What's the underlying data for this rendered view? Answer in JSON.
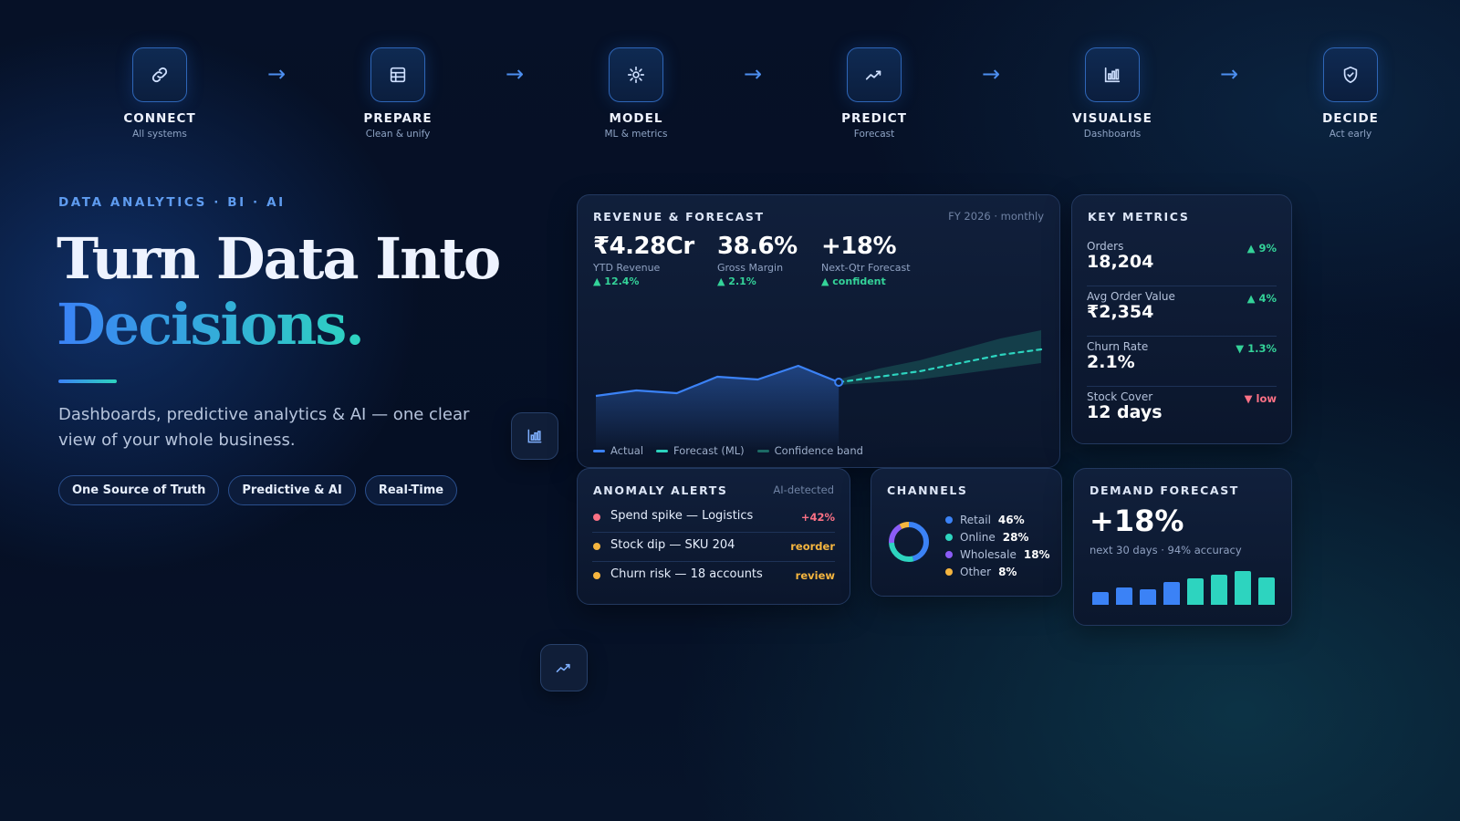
{
  "pipeline": [
    {
      "label": "CONNECT",
      "sub": "All systems",
      "icon": "link-icon"
    },
    {
      "label": "PREPARE",
      "sub": "Clean & unify",
      "icon": "table-icon"
    },
    {
      "label": "MODEL",
      "sub": "ML & metrics",
      "icon": "gear-icon"
    },
    {
      "label": "PREDICT",
      "sub": "Forecast",
      "icon": "trend-icon"
    },
    {
      "label": "VISUALISE",
      "sub": "Dashboards",
      "icon": "bar-chart-icon"
    },
    {
      "label": "DECIDE",
      "sub": "Act early",
      "icon": "shield-check-icon"
    }
  ],
  "hero": {
    "eyebrow": "DATA ANALYTICS · BI · AI",
    "headline_1": "Turn Data Into",
    "headline_2": "Decisions.",
    "description": "Dashboards, predictive analytics & AI — one clear view of your whole business.",
    "pills": [
      "One Source of Truth",
      "Predictive & AI",
      "Real-Time"
    ]
  },
  "revenue": {
    "title": "REVENUE & FORECAST",
    "meta": "FY 2026 · monthly",
    "stats": [
      {
        "value": "₹4.28Cr",
        "label": "YTD Revenue",
        "delta": "▲ 12.4%"
      },
      {
        "value": "38.6%",
        "label": "Gross Margin",
        "delta": "▲ 2.1%"
      },
      {
        "value": "+18%",
        "label": "Next-Qtr Forecast",
        "delta": "▲ confident"
      }
    ],
    "legend": [
      "Actual",
      "Forecast (ML)",
      "Confidence band"
    ]
  },
  "chart_data": {
    "type": "line",
    "title": "",
    "x": [
      1,
      2,
      3,
      4,
      5,
      6,
      7,
      8,
      9,
      10,
      11,
      12
    ],
    "series": [
      {
        "name": "Actual",
        "values": [
          20,
          22,
          21,
          27,
          26,
          31,
          25,
          null,
          null,
          null,
          null,
          null
        ]
      },
      {
        "name": "Forecast (ML)",
        "values": [
          null,
          null,
          null,
          null,
          null,
          null,
          25,
          27,
          29,
          32,
          35,
          37
        ]
      },
      {
        "name": "Confidence band",
        "lower": [
          null,
          null,
          null,
          null,
          null,
          null,
          24,
          25,
          26,
          28,
          30,
          32
        ],
        "upper": [
          null,
          null,
          null,
          null,
          null,
          null,
          26,
          30,
          33,
          37,
          41,
          44
        ]
      }
    ],
    "ylim": [
      0,
      50
    ],
    "grid": false,
    "legend": "bottom-left",
    "colors": {
      "actual": "#3b82f6",
      "forecast": "#2dd4bf",
      "band": "#1d6b66"
    }
  },
  "metrics": {
    "title": "KEY METRICS",
    "items": [
      {
        "label": "Orders",
        "value": "18,204",
        "delta": "▲ 9%",
        "dir": "up"
      },
      {
        "label": "Avg Order Value",
        "value": "₹2,354",
        "delta": "▲ 4%",
        "dir": "up"
      },
      {
        "label": "Churn Rate",
        "value": "2.1%",
        "delta": "▼ 1.3%",
        "dir": "down-green"
      },
      {
        "label": "Stock Cover",
        "value": "12 days",
        "delta": "▼ low",
        "dir": "down"
      }
    ]
  },
  "anomaly": {
    "title": "ANOMALY ALERTS",
    "meta": "AI-detected",
    "items": [
      {
        "text": "Spend spike — Logistics",
        "tag": "+42%",
        "color": "#fb7185"
      },
      {
        "text": "Stock dip — SKU 204",
        "tag": "reorder",
        "color": "#f5b53f"
      },
      {
        "text": "Churn risk — 18 accounts",
        "tag": "review",
        "color": "#f5b53f"
      }
    ]
  },
  "channels": {
    "title": "CHANNELS",
    "items": [
      {
        "name": "Retail",
        "share": "46%",
        "value": 46,
        "color": "#3b82f6"
      },
      {
        "name": "Online",
        "share": "28%",
        "value": 28,
        "color": "#2dd4bf"
      },
      {
        "name": "Wholesale",
        "share": "18%",
        "value": 18,
        "color": "#8b5cf6"
      },
      {
        "name": "Other",
        "share": "8%",
        "value": 8,
        "color": "#f5b53f"
      }
    ]
  },
  "demand": {
    "title": "DEMAND FORECAST",
    "value": "+18%",
    "sub": "next 30 days · 94% accuracy",
    "bars": [
      0.35,
      0.47,
      0.42,
      0.62,
      0.72,
      0.82,
      0.92,
      0.76
    ],
    "bar_colors": [
      "#3b82f6",
      "#3b82f6",
      "#3b82f6",
      "#3b82f6",
      "#2dd4bf",
      "#2dd4bf",
      "#2dd4bf",
      "#2dd4bf"
    ]
  }
}
